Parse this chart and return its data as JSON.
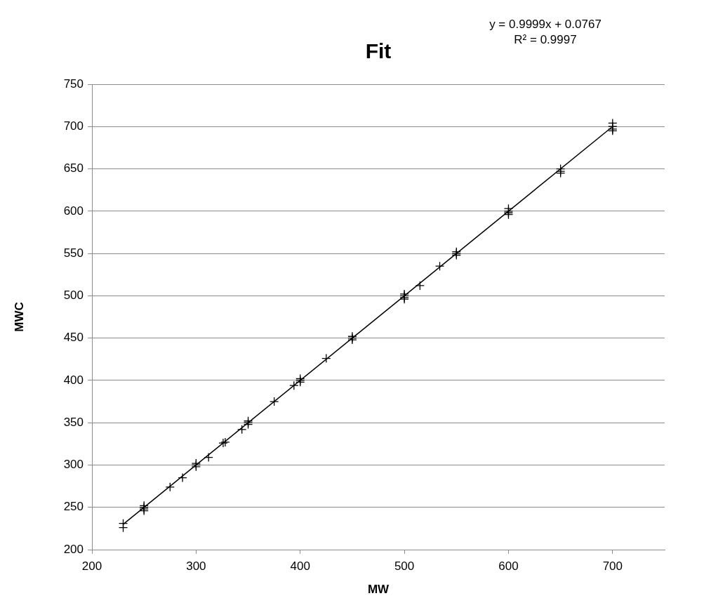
{
  "chart_data": {
    "type": "scatter",
    "title": "Fit",
    "xlabel": "MW",
    "ylabel": "MWC",
    "annotations": [
      "y = 0.9999x + 0.0767",
      "R² = 0.9997"
    ],
    "xlim": [
      200,
      750
    ],
    "ylim": [
      200,
      750
    ],
    "xticks": [
      200,
      300,
      400,
      500,
      600,
      700
    ],
    "yticks": [
      200,
      250,
      300,
      350,
      400,
      450,
      500,
      550,
      600,
      650,
      700,
      750
    ],
    "grid": "y",
    "marker": "cross",
    "series": [
      {
        "type": "scatter",
        "color": "#000000",
        "x": [
          230,
          230,
          250,
          250,
          250,
          250,
          275,
          287,
          300,
          300,
          300,
          312,
          326,
          328,
          344,
          350,
          350,
          350,
          375,
          394,
          400,
          400,
          400,
          425,
          450,
          450,
          450,
          500,
          500,
          500,
          500,
          515,
          534,
          550,
          550,
          550,
          600,
          600,
          600,
          600,
          650,
          650,
          650,
          700,
          700,
          700,
          700
        ],
        "values": [
          231,
          226,
          250,
          248,
          246,
          252,
          274,
          285,
          300,
          298,
          302,
          309,
          326,
          327,
          342,
          350,
          348,
          352,
          375,
          394,
          400,
          398,
          402,
          426,
          450,
          448,
          452,
          500,
          498,
          502,
          496,
          512,
          535,
          550,
          548,
          552,
          600,
          603,
          598,
          596,
          650,
          647,
          645,
          704,
          700,
          697,
          695
        ]
      },
      {
        "type": "line",
        "marker": "none",
        "color": "#000000",
        "x": [
          230,
          700
        ],
        "values": [
          230,
          700
        ]
      }
    ]
  }
}
